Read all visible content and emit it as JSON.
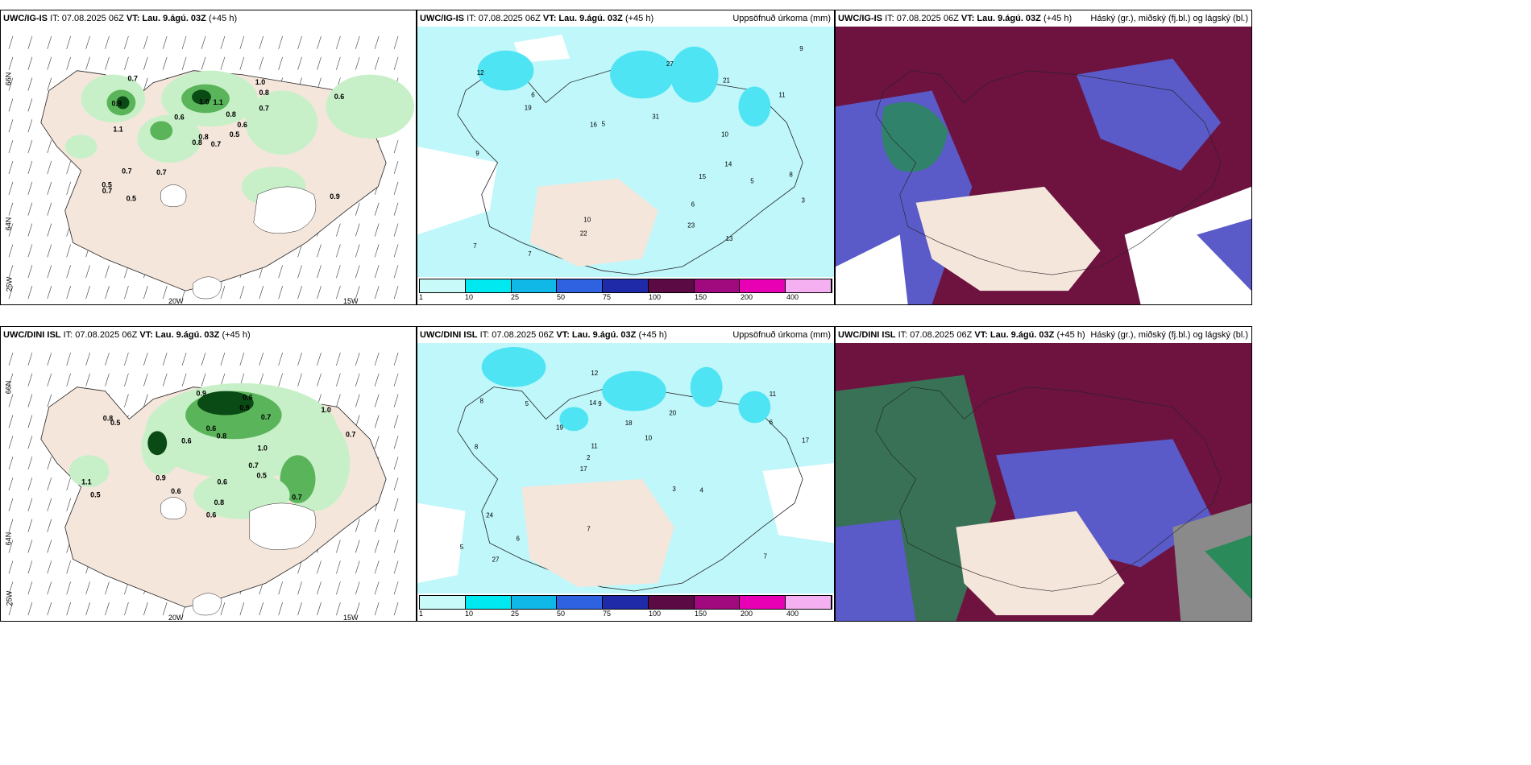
{
  "panels": [
    {
      "model": "UWC/IG-IS",
      "it": "IT: 07.08.2025 06Z",
      "vt_prefix": "VT:",
      "vt": "Lau. 9.ágú. 03Z",
      "offset": "(+45 h)",
      "right": ""
    },
    {
      "model": "UWC/IG-IS",
      "it": "IT: 07.08.2025 06Z",
      "vt_prefix": "VT:",
      "vt": "Lau. 9.ágú. 03Z",
      "offset": "(+45 h)",
      "right": "Uppsöfnuð úrkoma (mm)"
    },
    {
      "model": "UWC/IG-IS",
      "it": "IT: 07.08.2025 06Z",
      "vt_prefix": "VT:",
      "vt": "Lau. 9.ágú. 03Z",
      "offset": "(+45 h)",
      "right": "Háský (gr.), miðský (fj.bl.) og lágský (bl.)"
    },
    {
      "model": "UWC/DINI ISL",
      "it": "IT: 07.08.2025 06Z",
      "vt_prefix": "VT:",
      "vt": "Lau. 9.ágú. 03Z",
      "offset": "(+45 h)",
      "right": ""
    },
    {
      "model": "UWC/DINI ISL",
      "it": "IT: 07.08.2025 06Z",
      "vt_prefix": "VT:",
      "vt": "Lau. 9.ágú. 03Z",
      "offset": "(+45 h)",
      "right": "Uppsöfnuð úrkoma (mm)"
    },
    {
      "model": "UWC/DINI ISL",
      "it": "IT: 07.08.2025 06Z",
      "vt_prefix": "VT:",
      "vt": "Lau. 9.ágú. 03Z",
      "offset": "(+45 h)",
      "right": "Háský (gr.), miðský (fj.bl.) og lágský (bl.)"
    }
  ],
  "axis_labels": {
    "lat_top": "66N",
    "lat_mid": "64N",
    "lon_left": "25W",
    "lon_mid": "20W",
    "lon_right": "15W"
  },
  "colorbar": {
    "ticks": [
      "1",
      "10",
      "25",
      "50",
      "75",
      "100",
      "150",
      "200",
      "400"
    ],
    "colors": [
      "#c8fafa",
      "#00e8f0",
      "#10b8e8",
      "#2e62e0",
      "#1f2aa8",
      "#5c0a44",
      "#a00a7e",
      "#e800b4",
      "#f4b0f0"
    ]
  },
  "colors": {
    "land": "#f5e6dc",
    "sea": "#ffffff",
    "precip_light": "#c8f0c8",
    "precip_mid": "#5ab45a",
    "precip_dark": "#0a4a14",
    "accum_light": "#bff7fa",
    "accum_mid": "#4fe4f4",
    "cloud_high": "#6e1340",
    "cloud_mid": "#5a5ac8",
    "cloud_low": "#2a8a5a"
  },
  "precip_values": {
    "igis": [
      "0.7",
      "0.9",
      "0.8",
      "0.5",
      "0.6",
      "0.7",
      "1.0",
      "1.1",
      "0.8",
      "0.5",
      "0.7",
      "0.9",
      "1.1",
      "0.6",
      "0.8",
      "0.7",
      "0.5",
      "1.0",
      "0.8",
      "0.7",
      "0.6",
      "0.7"
    ],
    "dini": [
      "0.6",
      "0.8",
      "0.9",
      "1.0",
      "0.7",
      "0.5",
      "0.6",
      "0.9",
      "1.1",
      "0.8",
      "0.7",
      "0.6",
      "0.5",
      "0.9",
      "1.0",
      "0.7",
      "0.6",
      "0.8",
      "0.6",
      "0.7",
      "0.5",
      "0.6"
    ]
  },
  "accum_values": {
    "igis": [
      "10",
      "6",
      "7",
      "13",
      "19",
      "22",
      "23",
      "16",
      "21",
      "14",
      "31",
      "27",
      "5",
      "9",
      "7",
      "8",
      "6",
      "11",
      "15",
      "10",
      "12",
      "3",
      "5",
      "9"
    ],
    "dini": [
      "7",
      "8",
      "11",
      "17",
      "20",
      "27",
      "14",
      "18",
      "24",
      "19",
      "5",
      "6",
      "9",
      "10",
      "4",
      "8",
      "12",
      "17",
      "3",
      "6",
      "2",
      "7",
      "11",
      "5"
    ]
  }
}
